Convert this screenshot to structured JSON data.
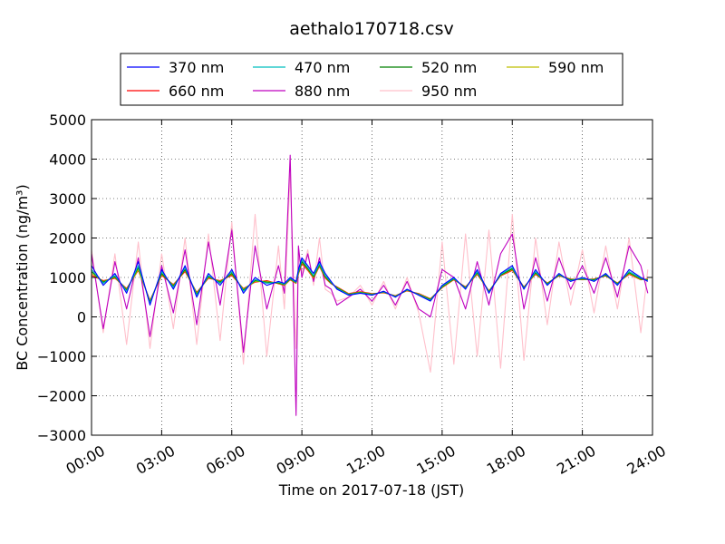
{
  "chart_data": {
    "type": "line",
    "title": "aethalo170718.csv",
    "xlabel": "Time on 2017-07-18 (JST)",
    "ylabel": "BC Concentration (ng/m³)",
    "xlim": [
      "00:00",
      "24:00"
    ],
    "ylim": [
      -3000,
      5000
    ],
    "x_ticks": [
      "00:00",
      "03:00",
      "06:00",
      "09:00",
      "12:00",
      "15:00",
      "18:00",
      "21:00",
      "24:00"
    ],
    "y_ticks": [
      5000,
      4000,
      3000,
      2000,
      1000,
      0,
      -1000,
      -2000,
      -3000
    ],
    "grid": true,
    "legend_position": "top-center",
    "x_hours": [
      0.0,
      0.5,
      1.0,
      1.5,
      2.0,
      2.5,
      3.0,
      3.5,
      4.0,
      4.5,
      5.0,
      5.5,
      6.0,
      6.5,
      7.0,
      7.5,
      8.0,
      8.25,
      8.5,
      8.75,
      8.85,
      9.0,
      9.25,
      9.5,
      9.75,
      10.0,
      10.25,
      10.5,
      11.0,
      11.5,
      12.0,
      12.5,
      13.0,
      13.5,
      14.0,
      14.5,
      15.0,
      15.5,
      16.0,
      16.5,
      17.0,
      17.5,
      18.0,
      18.5,
      19.0,
      19.5,
      20.0,
      20.5,
      21.0,
      21.5,
      22.0,
      22.5,
      23.0,
      23.5,
      23.8
    ],
    "series": [
      {
        "name": "370 nm",
        "color": "#0000ff",
        "values": [
          1300,
          800,
          1100,
          600,
          1400,
          300,
          1200,
          700,
          1300,
          500,
          1100,
          800,
          1200,
          600,
          1000,
          800,
          900,
          850,
          1000,
          900,
          1200,
          1500,
          1300,
          1100,
          1400,
          1100,
          900,
          700,
          550,
          600,
          550,
          650,
          500,
          700,
          550,
          400,
          800,
          1000,
          700,
          1200,
          600,
          1100,
          1300,
          700,
          1200,
          800,
          1100,
          900,
          1000,
          900,
          1100,
          800,
          1200,
          1000,
          900
        ]
      },
      {
        "name": "470 nm",
        "color": "#00bfbf",
        "values": [
          1200,
          850,
          1050,
          650,
          1300,
          350,
          1150,
          750,
          1250,
          550,
          1050,
          850,
          1150,
          650,
          950,
          850,
          880,
          830,
          980,
          880,
          1150,
          1450,
          1250,
          1050,
          1350,
          1050,
          880,
          720,
          560,
          610,
          560,
          640,
          510,
          690,
          560,
          420,
          780,
          980,
          720,
          1150,
          620,
          1080,
          1250,
          720,
          1150,
          820,
          1080,
          920,
          980,
          920,
          1080,
          820,
          1150,
          980,
          920
        ]
      },
      {
        "name": "520 nm",
        "color": "#008000",
        "values": [
          1150,
          880,
          1020,
          680,
          1250,
          380,
          1100,
          780,
          1200,
          580,
          1020,
          880,
          1100,
          680,
          920,
          880,
          860,
          820,
          960,
          870,
          1120,
          1400,
          1220,
          1020,
          1320,
          1020,
          860,
          740,
          570,
          620,
          570,
          630,
          520,
          680,
          570,
          440,
          760,
          960,
          740,
          1120,
          640,
          1060,
          1220,
          740,
          1120,
          840,
          1060,
          940,
          960,
          940,
          1060,
          840,
          1120,
          960,
          940
        ]
      },
      {
        "name": "590 nm",
        "color": "#bfbf00",
        "values": [
          1100,
          900,
          1000,
          700,
          1200,
          400,
          1080,
          800,
          1180,
          600,
          1000,
          900,
          1080,
          700,
          900,
          900,
          850,
          810,
          950,
          860,
          1100,
          1380,
          1200,
          1000,
          1300,
          1000,
          850,
          750,
          580,
          630,
          580,
          620,
          530,
          670,
          580,
          450,
          750,
          950,
          750,
          1100,
          650,
          1050,
          1200,
          750,
          1100,
          850,
          1050,
          950,
          950,
          950,
          1050,
          850,
          1100,
          950,
          950
        ]
      },
      {
        "name": "660 nm",
        "color": "#ff0000",
        "values": [
          1050,
          920,
          980,
          720,
          1180,
          420,
          1050,
          820,
          1150,
          620,
          980,
          920,
          1050,
          720,
          880,
          920,
          840,
          800,
          940,
          850,
          1080,
          1350,
          1180,
          980,
          1280,
          980,
          840,
          760,
          590,
          640,
          590,
          610,
          540,
          660,
          590,
          460,
          740,
          940,
          760,
          1080,
          660,
          1040,
          1180,
          760,
          1080,
          860,
          1040,
          960,
          940,
          960,
          1040,
          860,
          1080,
          940,
          960
        ]
      },
      {
        "name": "880 nm",
        "color": "#bf00bf",
        "values": [
          1600,
          -300,
          1400,
          200,
          1500,
          -500,
          1300,
          100,
          1700,
          -200,
          1900,
          300,
          2200,
          -900,
          1800,
          200,
          1300,
          600,
          4100,
          -2500,
          1800,
          1000,
          1600,
          900,
          1500,
          800,
          700,
          300,
          500,
          700,
          400,
          800,
          300,
          900,
          200,
          0,
          1200,
          1000,
          200,
          1400,
          300,
          1600,
          2100,
          200,
          1500,
          400,
          1500,
          700,
          1300,
          600,
          1500,
          500,
          1800,
          1300,
          600
        ]
      },
      {
        "name": "950 nm",
        "color": "#ffc0cb",
        "values": [
          1700,
          -400,
          1600,
          -700,
          1900,
          -800,
          1600,
          -300,
          2000,
          -700,
          2100,
          -600,
          2400,
          -1200,
          2600,
          -1000,
          1800,
          200,
          3600,
          -800,
          1600,
          1100,
          1700,
          800,
          2000,
          700,
          600,
          400,
          500,
          800,
          300,
          900,
          200,
          1000,
          100,
          -1400,
          1900,
          -1200,
          2100,
          -1000,
          2200,
          -1300,
          2600,
          -1100,
          2000,
          -200,
          1900,
          300,
          1700,
          100,
          1800,
          200,
          2000,
          -400,
          1200
        ]
      }
    ]
  }
}
